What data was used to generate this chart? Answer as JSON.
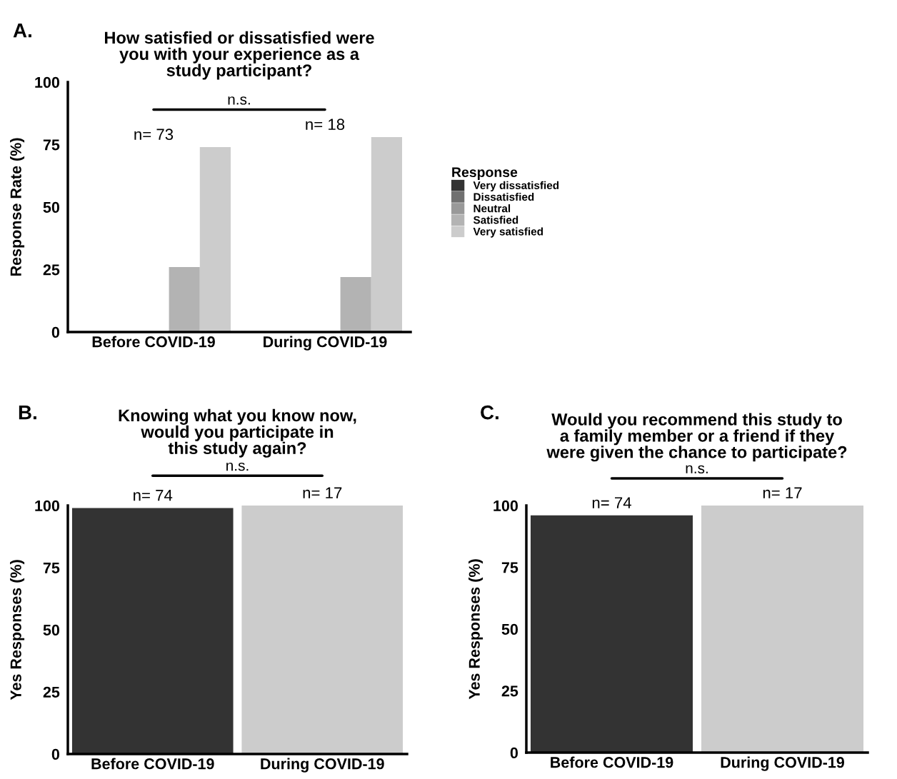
{
  "chart_data": [
    {
      "type": "bar",
      "title": "How satisfied or dissatisfied were\nyou with your experience as a\nstudy participant?",
      "ylabel": "Response Rate (%)",
      "legend_title": "Response",
      "legend": "right",
      "categories": [
        "Before COVID-19",
        "During COVID-19"
      ],
      "series": [
        {
          "name": "Very dissatisfied",
          "color": "#333333",
          "values": [
            0,
            0
          ]
        },
        {
          "name": "Dissatisfied",
          "color": "#707070",
          "values": [
            0,
            0
          ]
        },
        {
          "name": "Neutral",
          "color": "#999999",
          "values": [
            0,
            0
          ]
        },
        {
          "name": "Satisfied",
          "color": "#b3b3b3",
          "values": [
            26,
            22
          ]
        },
        {
          "name": "Very satisfied",
          "color": "#cccccc",
          "values": [
            74,
            78
          ]
        }
      ],
      "ylim": [
        0,
        100
      ],
      "yticks": [
        0,
        25,
        50,
        75,
        100
      ],
      "annotations": [
        "A.",
        "n.s.",
        "n= 73",
        "n= 18"
      ]
    },
    {
      "type": "bar",
      "title": "Knowing what you know now,\nwould you participate in\nthis study again?",
      "ylabel": "Yes Responses (%)",
      "categories": [
        "Before COVID-19",
        "During COVID-19"
      ],
      "values": [
        99,
        100
      ],
      "colors": [
        "#333333",
        "#cccccc"
      ],
      "ylim": [
        0,
        100
      ],
      "yticks": [
        0,
        25,
        50,
        75,
        100
      ],
      "annotations": [
        "B.",
        "n.s.",
        "n= 74",
        "n= 17"
      ]
    },
    {
      "type": "bar",
      "title": "Would you recommend this study to\na family member or a friend if they\nwere given the chance to participate?",
      "ylabel": "Yes Responses (%)",
      "categories": [
        "Before COVID-19",
        "During COVID-19"
      ],
      "values": [
        96,
        100
      ],
      "colors": [
        "#333333",
        "#cccccc"
      ],
      "ylim": [
        0,
        100
      ],
      "yticks": [
        0,
        25,
        50,
        75,
        100
      ],
      "annotations": [
        "C.",
        "n.s.",
        "n= 74",
        "n= 17"
      ]
    }
  ]
}
